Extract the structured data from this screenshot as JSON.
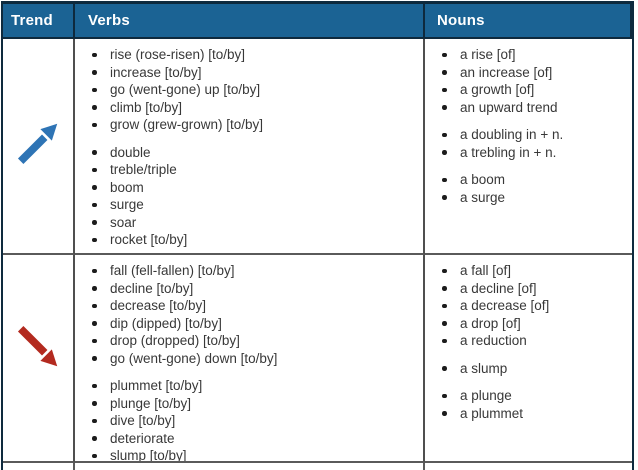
{
  "table": {
    "columns": [
      "Trend",
      "Verbs",
      "Nouns"
    ],
    "rows": [
      {
        "trend": {
          "icon": "trend-up-arrow",
          "direction": "up",
          "color": "#2e74b5"
        },
        "verbs": [
          [
            "rise (rose-risen) [to/by]",
            "increase [to/by]",
            "go (went-gone) up [to/by]",
            "climb [to/by]",
            "grow (grew-grown) [to/by]"
          ],
          [
            "double",
            "treble/triple",
            "boom",
            "surge",
            "soar",
            "rocket [to/by]"
          ]
        ],
        "nouns": [
          [
            "a rise [of]",
            "an increase [of]",
            "a growth [of]",
            "an upward trend"
          ],
          [
            "a doubling in + n.",
            "a trebling in + n."
          ],
          [
            "a boom",
            "a surge"
          ]
        ]
      },
      {
        "trend": {
          "icon": "trend-down-arrow",
          "direction": "down",
          "color": "#b32a1f"
        },
        "verbs": [
          [
            "fall (fell-fallen) [to/by]",
            "decline [to/by]",
            "decrease [to/by]",
            "dip (dipped) [to/by]",
            "drop (dropped) [to/by]",
            "go (went-gone) down [to/by]"
          ],
          [
            "plummet [to/by]",
            "plunge [to/by]",
            "dive [to/by]",
            "deteriorate",
            "slump [to/by]"
          ]
        ],
        "nouns": [
          [
            "a fall [of]",
            "a decline [of]",
            "a decrease [of]",
            "a drop [of]",
            "a reduction"
          ],
          [
            "a slump"
          ],
          [
            "a plunge",
            "a plummet"
          ]
        ]
      }
    ]
  },
  "colors": {
    "header_bg": "#1b6394",
    "header_text": "#ffffff",
    "outer_border": "#0e2a3e",
    "inner_border": "#555555",
    "body_text": "#383838",
    "up_arrow": "#2e74b5",
    "down_arrow": "#b32a1f"
  }
}
